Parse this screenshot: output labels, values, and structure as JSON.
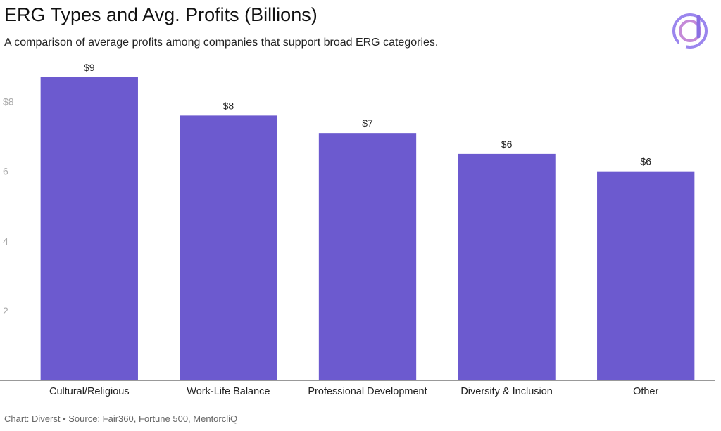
{
  "title": "ERG Types and Avg. Profits (Billions)",
  "subtitle": "A comparison of average profits among companies that support broad ERG categories.",
  "footer": "Chart: Diverst • Source: Fair360, Fortune 500, MentorcliQ",
  "logo": {
    "icon": "diverst-logo-icon",
    "colors": [
      "#8a7cf0",
      "#c07ad8",
      "#6a5bd6"
    ]
  },
  "chart_data": {
    "type": "bar",
    "title": "ERG Types and Avg. Profits (Billions)",
    "subtitle": "A comparison of average profits among companies that support broad ERG categories.",
    "categories": [
      "Cultural/Religious",
      "Work-Life Balance",
      "Professional Development",
      "Diversity & Inclusion",
      "Other"
    ],
    "values": [
      8.7,
      7.6,
      7.1,
      6.5,
      6.0
    ],
    "data_labels": [
      "$9",
      "$8",
      "$7",
      "$6",
      "$6"
    ],
    "yticks": [
      2,
      4,
      6,
      8
    ],
    "ytick_labels": [
      "2",
      "4",
      "6",
      "$8"
    ],
    "ylim": [
      0,
      9
    ],
    "xlabel": "",
    "ylabel": "",
    "grid": false,
    "bar_color": "#6c5acf"
  }
}
